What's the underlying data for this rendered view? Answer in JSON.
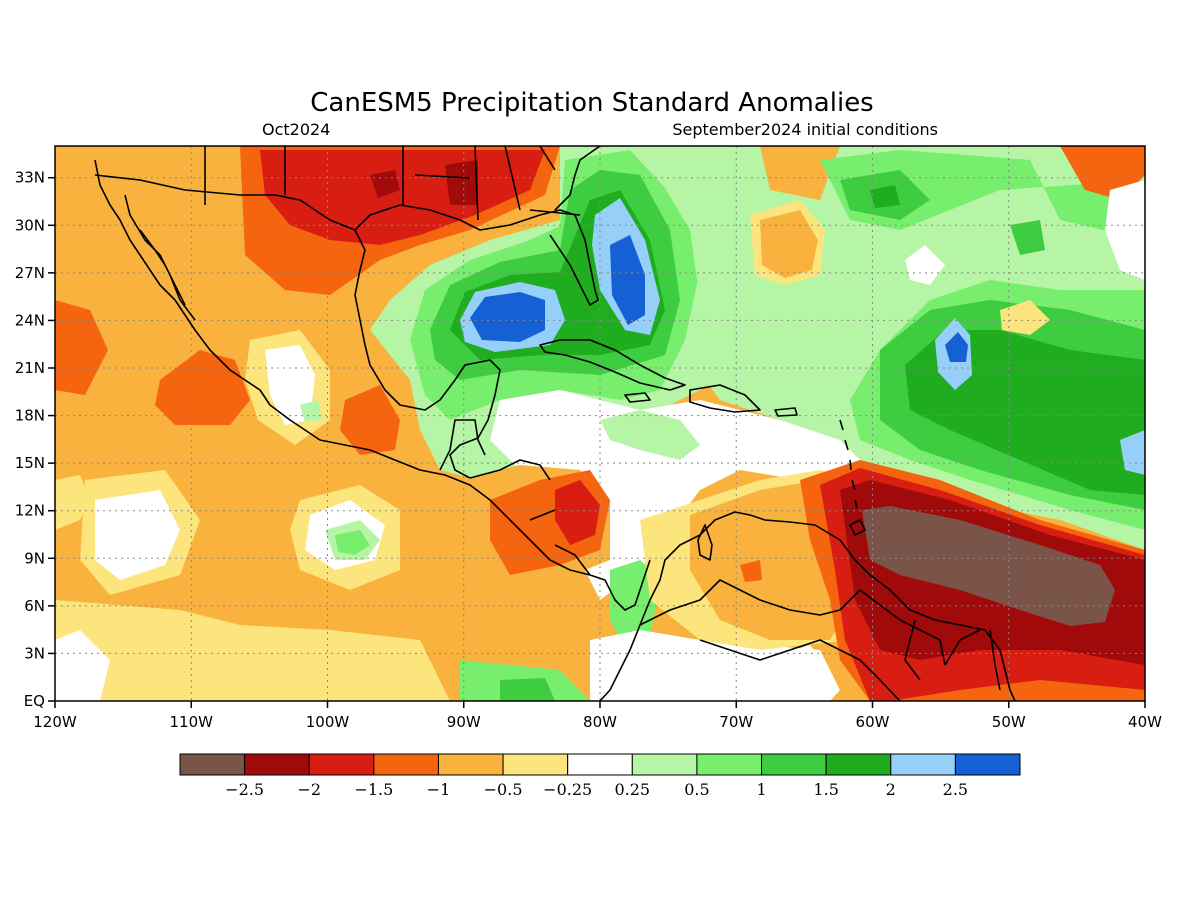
{
  "title": "CanESM5 Precipitation Standard Anomalies",
  "subtitle_left": "Oct2024",
  "subtitle_right": "September2024 initial conditions",
  "map": {
    "lon_range": [
      -120,
      -40
    ],
    "lat_range": [
      0,
      35
    ],
    "x_ticks": [
      {
        "lon": -120,
        "label": "120W"
      },
      {
        "lon": -110,
        "label": "110W"
      },
      {
        "lon": -100,
        "label": "100W"
      },
      {
        "lon": -90,
        "label": "90W"
      },
      {
        "lon": -80,
        "label": "80W"
      },
      {
        "lon": -70,
        "label": "70W"
      },
      {
        "lon": -60,
        "label": "60W"
      },
      {
        "lon": -50,
        "label": "50W"
      },
      {
        "lon": -40,
        "label": "40W"
      }
    ],
    "y_ticks": [
      {
        "lat": 0,
        "label": "EQ"
      },
      {
        "lat": 3,
        "label": "3N"
      },
      {
        "lat": 6,
        "label": "6N"
      },
      {
        "lat": 9,
        "label": "9N"
      },
      {
        "lat": 12,
        "label": "12N"
      },
      {
        "lat": 15,
        "label": "15N"
      },
      {
        "lat": 18,
        "label": "18N"
      },
      {
        "lat": 21,
        "label": "21N"
      },
      {
        "lat": 24,
        "label": "24N"
      },
      {
        "lat": 27,
        "label": "27N"
      },
      {
        "lat": 30,
        "label": "30N"
      },
      {
        "lat": 33,
        "label": "33N"
      }
    ]
  },
  "legend": {
    "colors": [
      "#7b5449",
      "#a10a0a",
      "#d81d12",
      "#f5640f",
      "#f9b23e",
      "#fde57e",
      "#ffffff",
      "#b6f5a5",
      "#78ee6f",
      "#3ecc40",
      "#1fac1f",
      "#96d0f8",
      "#1560d4"
    ],
    "labels": [
      "−2.5",
      "−2",
      "−1.5",
      "−1",
      "−0.5",
      "−0.25",
      "0.25",
      "0.5",
      "1",
      "1.5",
      "2",
      "2.5"
    ]
  }
}
